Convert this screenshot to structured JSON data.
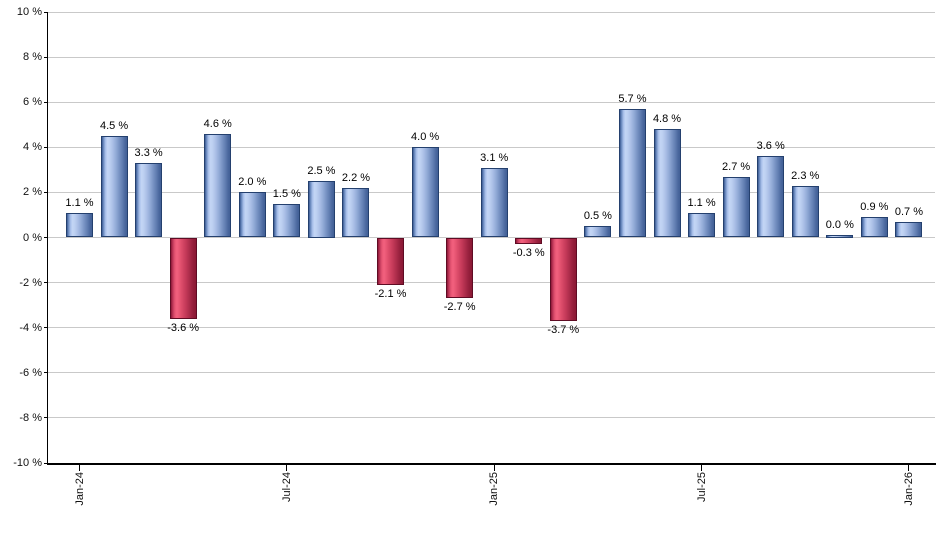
{
  "page": {
    "background": "#ffffff"
  },
  "chart_data": {
    "type": "bar",
    "title": "",
    "xlabel": "",
    "ylabel": "",
    "categories": [
      "Jan-24",
      "Feb-24",
      "Mar-24",
      "Apr-24",
      "May-24",
      "Jun-24",
      "Jul-24",
      "Aug-24",
      "Sep-24",
      "Oct-24",
      "Nov-24",
      "Dec-24",
      "Jan-25",
      "Feb-25",
      "Mar-25",
      "Apr-25",
      "May-25",
      "Jun-25",
      "Jul-25",
      "Aug-25",
      "Sep-25",
      "Oct-25",
      "Nov-25",
      "Dec-25",
      "Jan-26"
    ],
    "values": [
      1.1,
      4.5,
      3.3,
      -3.6,
      4.6,
      2.0,
      1.5,
      2.5,
      2.2,
      -2.1,
      4.0,
      -2.7,
      3.1,
      -0.3,
      -3.7,
      0.5,
      5.7,
      4.8,
      1.1,
      2.7,
      3.6,
      2.3,
      0.0,
      0.9,
      0.7
    ],
    "bar_value_labels": [
      "1.1 %",
      "4.5 %",
      "3.3 %",
      "-3.6 %",
      "4.6 %",
      "2.0 %",
      "1.5 %",
      "2.5 %",
      "2.2 %",
      "-2.1 %",
      "4.0 %",
      "-2.7 %",
      "3.1 %",
      "-0.3 %",
      "-3.7 %",
      "0.5 %",
      "5.7 %",
      "4.8 %",
      "1.1 %",
      "2.7 %",
      "3.6 %",
      "2.3 %",
      "0.0 %",
      "0.9 %",
      "0.7 %"
    ],
    "x_tick_labels": [
      "Jan-24",
      "Jul-24",
      "Jan-25",
      "Jul-25",
      "Jan-26"
    ],
    "x_tick_indices": [
      0,
      6,
      12,
      18,
      24
    ],
    "y_ticks": [
      10,
      8,
      6,
      4,
      2,
      0,
      -2,
      -4,
      -6,
      -8,
      -10
    ],
    "y_tick_labels": [
      "10 %",
      "8 %",
      "6 %",
      "4 %",
      "2 %",
      "0 %",
      "-2 %",
      "-4 %",
      "-6 %",
      "-8 %",
      "-10 %"
    ],
    "ylim": [
      -10,
      10
    ],
    "grid": true,
    "legend_position": "none",
    "colors": {
      "positive_light": "#c4d6f5",
      "positive_dark": "#3b5b93",
      "positive_border": "#24406e",
      "negative_light": "#f2617e",
      "negative_dark": "#8a1834",
      "negative_border": "#5f0c24",
      "gridline": "#c9c9c9",
      "axis": "#000000",
      "label_text": "#000000"
    }
  }
}
